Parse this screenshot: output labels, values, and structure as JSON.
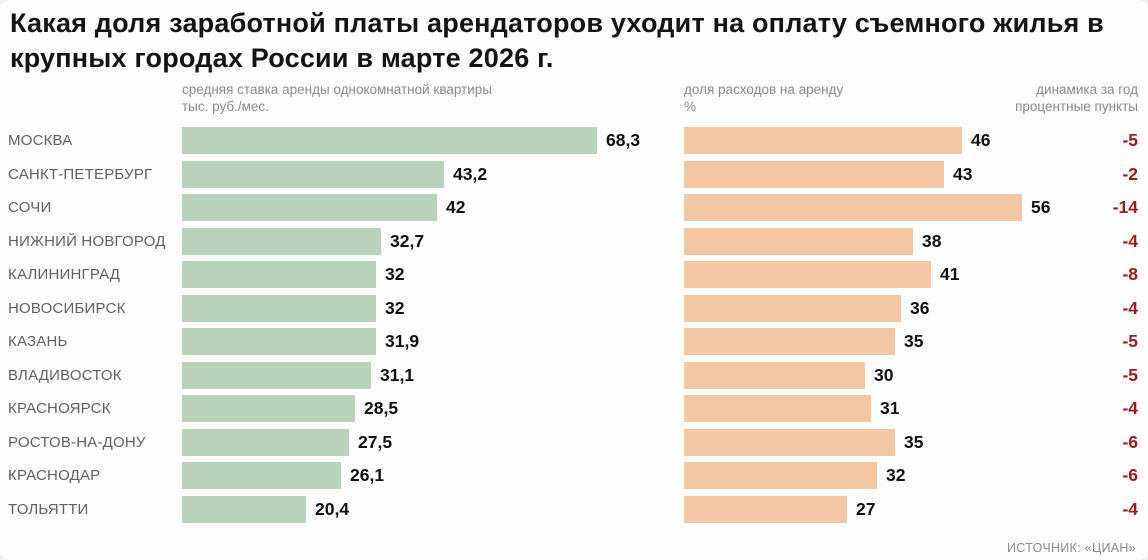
{
  "title": "Какая доля заработной платы арендаторов уходит на оплату съемного жилья в крупных городах России в марте 2026 г.",
  "columns": {
    "rent": {
      "label_line1": "средняя ставка аренды однокомнатной квартиры",
      "label_line2": "тыс. руб./мес."
    },
    "share": {
      "label_line1": "доля расходов на аренду",
      "label_line2": "%"
    },
    "dynamics": {
      "label_line1": "динамика за год",
      "label_line2": "процентные пункты"
    }
  },
  "source": "ИСТОЧНИК: «ЦИАН»",
  "colors": {
    "rent_bar": "#b9d3bb",
    "share_bar": "#f3c7a4",
    "dynamics_text": "#a01a1a"
  },
  "chart_data": {
    "type": "bar",
    "orientation": "horizontal",
    "title": "Какая доля заработной платы арендаторов уходит на оплату съемного жилья в крупных городах России в марте 2026 г.",
    "categories": [
      "МОСКВА",
      "САНКТ-ПЕТЕРБУРГ",
      "СОЧИ",
      "НИЖНИЙ НОВГОРОД",
      "КАЛИНИНГРАД",
      "НОВОСИБИРСК",
      "КАЗАНЬ",
      "ВЛАДИВОСТОК",
      "КРАСНОЯРСК",
      "РОСТОВ-НА-ДОНУ",
      "КРАСНОДАР",
      "ТОЛЬЯТТИ"
    ],
    "series": [
      {
        "name": "средняя ставка аренды однокомнатной квартиры, тыс. руб./мес.",
        "values": [
          68.3,
          43.2,
          42,
          32.7,
          32,
          32,
          31.9,
          31.1,
          28.5,
          27.5,
          26.1,
          20.4
        ],
        "display": [
          "68,3",
          "43,2",
          "42",
          "32,7",
          "32",
          "32",
          "31,9",
          "31,1",
          "28,5",
          "27,5",
          "26,1",
          "20,4"
        ],
        "axis_max": 68.3
      },
      {
        "name": "доля расходов на аренду, %",
        "values": [
          46,
          43,
          56,
          38,
          41,
          36,
          35,
          30,
          31,
          35,
          32,
          27
        ],
        "display": [
          "46",
          "43",
          "56",
          "38",
          "41",
          "36",
          "35",
          "30",
          "31",
          "35",
          "32",
          "27"
        ],
        "axis_max": 56
      },
      {
        "name": "динамика за год, процентные пункты",
        "values": [
          -5,
          -2,
          -14,
          -4,
          -8,
          -4,
          -5,
          -5,
          -4,
          -6,
          -6,
          -4
        ],
        "display": [
          "-5",
          "-2",
          "-14",
          "-4",
          "-8",
          "-4",
          "-5",
          "-5",
          "-4",
          "-6",
          "-6",
          "-4"
        ]
      }
    ],
    "legend_position": "none",
    "grid": false
  }
}
